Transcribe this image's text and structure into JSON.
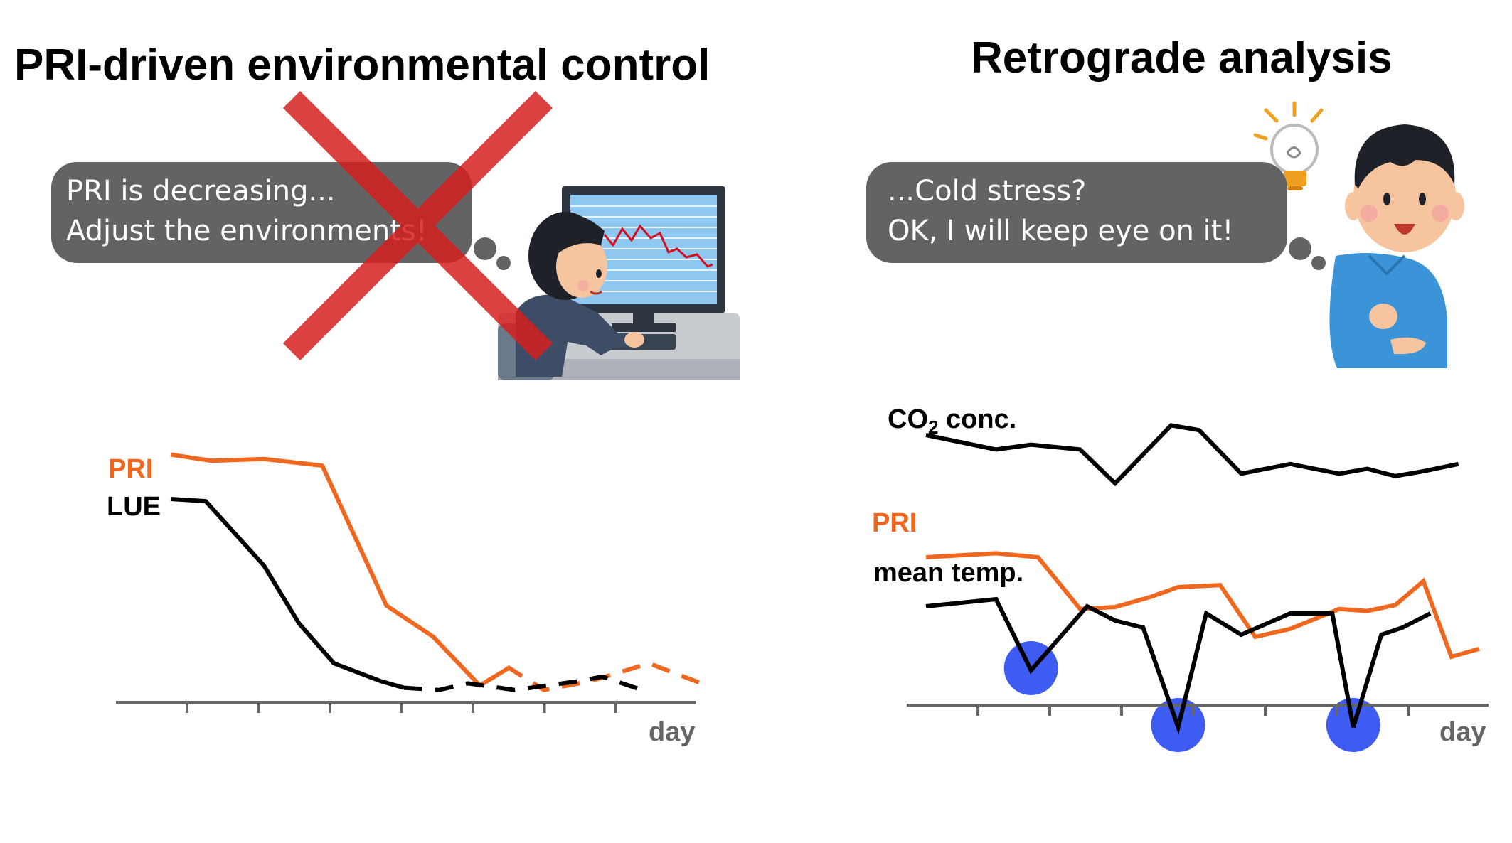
{
  "left_panel": {
    "title": "PRI-driven environmental control",
    "bubble_lines": [
      "PRI is decreasing...",
      "Adjust the environments!"
    ],
    "chart": {
      "series": [
        {
          "name": "PRI",
          "color": "#f06820",
          "solid": [
            [
              0,
              10
            ],
            [
              0.7,
              8.6
            ],
            [
              1.6,
              9.0
            ],
            [
              2.6,
              7.5
            ],
            [
              3.7,
              -24
            ],
            [
              4.5,
              -31
            ],
            [
              5.3,
              -42
            ],
            [
              5.8,
              -38
            ]
          ],
          "dashed": [
            [
              5.3,
              -42
            ],
            [
              5.8,
              -38
            ],
            [
              6.4,
              -43
            ],
            [
              7.2,
              -41
            ],
            [
              8.2,
              -37
            ],
            [
              9.2,
              -42
            ]
          ]
        },
        {
          "name": "LUE",
          "color": "#000000",
          "solid": [
            [
              0,
              0
            ],
            [
              0.6,
              -0.5
            ],
            [
              1.6,
              -15
            ],
            [
              2.2,
              -28
            ],
            [
              2.8,
              -37
            ],
            [
              3.6,
              -41
            ],
            [
              4.0,
              -42.5
            ]
          ],
          "dashed": [
            [
              4.0,
              -42.5
            ],
            [
              4.6,
              -43
            ],
            [
              5.1,
              -41.5
            ],
            [
              5.9,
              -43
            ],
            [
              7.0,
              -41
            ],
            [
              7.4,
              -40
            ],
            [
              8.2,
              -43.5
            ]
          ]
        }
      ],
      "xlabel": "day"
    }
  },
  "right_panel": {
    "title": "Retrograde analysis",
    "bubble_lines": [
      "...Cold stress?",
      "OK, I will keep eye on it!"
    ],
    "chart": {
      "series": [
        {
          "name": "CO",
          "subscript": "2",
          "suffix": " conc.",
          "color": "#000000",
          "values": [
            [
              0,
              10
            ],
            [
              1,
              7
            ],
            [
              1.5,
              8
            ],
            [
              2.2,
              7
            ],
            [
              2.7,
              0
            ],
            [
              3.5,
              12
            ],
            [
              3.9,
              11
            ],
            [
              4.5,
              2
            ],
            [
              5.2,
              4
            ],
            [
              5.9,
              2
            ],
            [
              6.3,
              3
            ],
            [
              6.7,
              1.5
            ],
            [
              7.1,
              2.5
            ],
            [
              7.6,
              4
            ]
          ]
        },
        {
          "name": "PRI",
          "color": "#f06820",
          "values": [
            [
              0,
              10
            ],
            [
              1,
              11
            ],
            [
              1.6,
              10
            ],
            [
              2.2,
              -3
            ],
            [
              2.7,
              -2.5
            ],
            [
              3.2,
              0
            ],
            [
              3.6,
              2.5
            ],
            [
              4.2,
              3
            ],
            [
              4.7,
              -10
            ],
            [
              5.2,
              -8
            ],
            [
              5.9,
              -3
            ],
            [
              6.3,
              -3.5
            ],
            [
              6.7,
              -2
            ],
            [
              7.1,
              4
            ],
            [
              7.5,
              -15
            ],
            [
              7.9,
              -13
            ]
          ]
        },
        {
          "name": "mean temp.",
          "color": "#000000",
          "values": [
            [
              0,
              10
            ],
            [
              1,
              11
            ],
            [
              1.5,
              1
            ],
            [
              2.3,
              10
            ],
            [
              2.7,
              8
            ],
            [
              3.1,
              7
            ],
            [
              3.6,
              -7
            ],
            [
              4.0,
              9
            ],
            [
              4.5,
              6
            ],
            [
              5.2,
              9
            ],
            [
              5.8,
              9
            ],
            [
              6.1,
              -7
            ],
            [
              6.5,
              6
            ],
            [
              6.8,
              7
            ],
            [
              7.2,
              9
            ]
          ]
        }
      ],
      "highlighted_dips": [
        1.5,
        3.6,
        6.1
      ],
      "xlabel": "day"
    }
  }
}
